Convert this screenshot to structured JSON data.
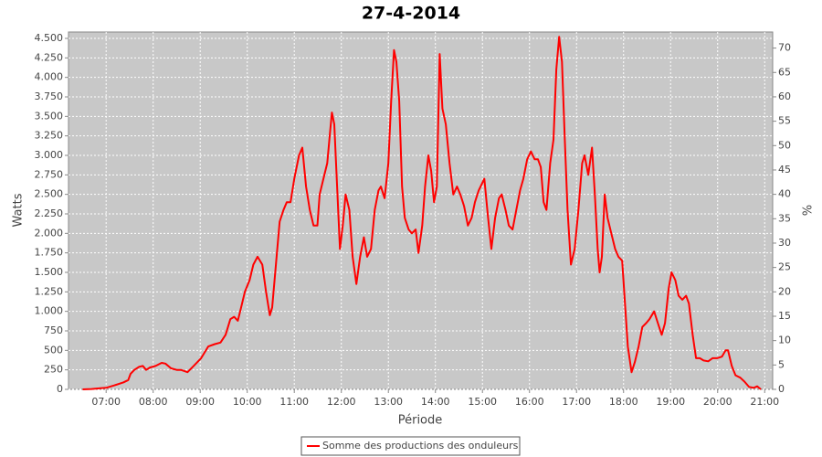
{
  "chart_data": {
    "type": "line",
    "title": "27-4-2014",
    "x_label": "Période",
    "y_label": "Watts",
    "y2_label": "%",
    "x": [
      6.5,
      6.69,
      6.88,
      7.0,
      7.17,
      7.37,
      7.47,
      7.52,
      7.6,
      7.7,
      7.78,
      7.85,
      7.93,
      8.05,
      8.18,
      8.26,
      8.38,
      8.5,
      8.59,
      8.73,
      8.86,
      9.02,
      9.17,
      9.31,
      9.43,
      9.54,
      9.64,
      9.72,
      9.8,
      9.87,
      9.95,
      10.05,
      10.13,
      10.22,
      10.32,
      10.4,
      10.48,
      10.53,
      10.61,
      10.69,
      10.77,
      10.84,
      10.92,
      11.0,
      11.1,
      11.17,
      11.25,
      11.33,
      11.41,
      11.49,
      11.54,
      11.62,
      11.7,
      11.76,
      11.8,
      11.85,
      11.91,
      11.97,
      12.03,
      12.09,
      12.17,
      12.24,
      12.32,
      12.4,
      12.48,
      12.55,
      12.63,
      12.71,
      12.79,
      12.84,
      12.92,
      13.0,
      13.06,
      13.12,
      13.17,
      13.23,
      13.29,
      13.35,
      13.43,
      13.5,
      13.58,
      13.64,
      13.72,
      13.78,
      13.85,
      13.91,
      13.97,
      14.03,
      14.09,
      14.15,
      14.22,
      14.3,
      14.38,
      14.46,
      14.53,
      14.61,
      14.69,
      14.77,
      14.84,
      14.92,
      15.04,
      15.12,
      15.19,
      15.27,
      15.35,
      15.41,
      15.49,
      15.56,
      15.64,
      15.72,
      15.8,
      15.87,
      15.95,
      16.03,
      16.11,
      16.18,
      16.24,
      16.3,
      16.36,
      16.44,
      16.51,
      16.57,
      16.63,
      16.69,
      16.75,
      16.81,
      16.88,
      16.96,
      17.04,
      17.12,
      17.17,
      17.25,
      17.33,
      17.39,
      17.45,
      17.49,
      17.54,
      17.6,
      17.66,
      17.74,
      17.82,
      17.89,
      17.97,
      18.03,
      18.09,
      18.17,
      18.24,
      18.32,
      18.4,
      18.48,
      18.55,
      18.65,
      18.73,
      18.81,
      18.88,
      18.96,
      19.02,
      19.1,
      19.17,
      19.25,
      19.33,
      19.39,
      19.47,
      19.54,
      19.62,
      19.7,
      19.8,
      19.89,
      19.99,
      20.09,
      20.17,
      20.22,
      20.3,
      20.38,
      20.48,
      20.57,
      20.67,
      20.77,
      20.84,
      20.92
    ],
    "series": [
      {
        "name": "Somme des productions des onduleurs",
        "color": "#ff0000",
        "values": [
          0,
          5,
          15,
          20,
          50,
          90,
          120,
          200,
          250,
          290,
          300,
          250,
          280,
          300,
          340,
          330,
          270,
          250,
          250,
          220,
          300,
          400,
          550,
          580,
          600,
          700,
          900,
          930,
          880,
          1050,
          1250,
          1400,
          1600,
          1700,
          1600,
          1250,
          950,
          1050,
          1600,
          2150,
          2300,
          2400,
          2400,
          2700,
          3000,
          3100,
          2600,
          2300,
          2100,
          2100,
          2500,
          2700,
          2900,
          3300,
          3550,
          3400,
          2600,
          1800,
          2100,
          2500,
          2300,
          1700,
          1350,
          1700,
          1950,
          1700,
          1800,
          2300,
          2550,
          2600,
          2450,
          2900,
          3700,
          4350,
          4200,
          3700,
          2600,
          2200,
          2050,
          2000,
          2050,
          1750,
          2100,
          2600,
          3000,
          2800,
          2400,
          2600,
          4300,
          3600,
          3400,
          2900,
          2500,
          2600,
          2500,
          2350,
          2100,
          2200,
          2400,
          2550,
          2700,
          2200,
          1800,
          2200,
          2450,
          2500,
          2300,
          2100,
          2050,
          2300,
          2550,
          2700,
          2950,
          3050,
          2950,
          2950,
          2850,
          2400,
          2300,
          2900,
          3200,
          4100,
          4520,
          4200,
          3200,
          2300,
          1600,
          1800,
          2300,
          2900,
          3000,
          2750,
          3100,
          2500,
          1800,
          1500,
          1700,
          2500,
          2200,
          2000,
          1800,
          1700,
          1650,
          1100,
          550,
          220,
          350,
          550,
          800,
          850,
          900,
          1000,
          850,
          700,
          850,
          1300,
          1500,
          1400,
          1200,
          1150,
          1200,
          1100,
          700,
          400,
          400,
          370,
          360,
          400,
          400,
          420,
          500,
          500,
          300,
          180,
          150,
          100,
          30,
          20,
          40,
          0
        ]
      }
    ],
    "xlim": [
      6.2,
      21.17
    ],
    "xticks": [
      {
        "value": 7,
        "label": "07:00"
      },
      {
        "value": 8,
        "label": "08:00"
      },
      {
        "value": 9,
        "label": "09:00"
      },
      {
        "value": 10,
        "label": "10:00"
      },
      {
        "value": 11,
        "label": "11:00"
      },
      {
        "value": 12,
        "label": "12:00"
      },
      {
        "value": 13,
        "label": "13:00"
      },
      {
        "value": 14,
        "label": "14:00"
      },
      {
        "value": 15,
        "label": "15:00"
      },
      {
        "value": 16,
        "label": "16:00"
      },
      {
        "value": 17,
        "label": "17:00"
      },
      {
        "value": 18,
        "label": "18:00"
      },
      {
        "value": 19,
        "label": "19:00"
      },
      {
        "value": 20,
        "label": "20:00"
      },
      {
        "value": 21,
        "label": "21:00"
      }
    ],
    "ylim": [
      0,
      4582
    ],
    "yticks": [
      0,
      250,
      500,
      750,
      {
        "value": 1000,
        "label": "1.000"
      },
      {
        "value": 1250,
        "label": "1.250"
      },
      {
        "value": 1500,
        "label": "1.500"
      },
      {
        "value": 1750,
        "label": "1.750"
      },
      {
        "value": 2000,
        "label": "2.000"
      },
      {
        "value": 2250,
        "label": "2.250"
      },
      {
        "value": 2500,
        "label": "2.500"
      },
      {
        "value": 2750,
        "label": "2.750"
      },
      {
        "value": 3000,
        "label": "3.000"
      },
      {
        "value": 3250,
        "label": "3.250"
      },
      {
        "value": 3500,
        "label": "3.500"
      },
      {
        "value": 3750,
        "label": "3.750"
      },
      {
        "value": 4000,
        "label": "4.000"
      },
      {
        "value": 4250,
        "label": "4.250"
      },
      {
        "value": 4500,
        "label": "4.500"
      }
    ],
    "y2lim": [
      0,
      73.3
    ],
    "y2ticks": [
      0,
      5,
      10,
      15,
      20,
      25,
      30,
      35,
      40,
      45,
      50,
      55,
      60,
      65,
      70
    ],
    "grid": true,
    "legend": "bottom",
    "plot_background": "#c8c8c8"
  }
}
